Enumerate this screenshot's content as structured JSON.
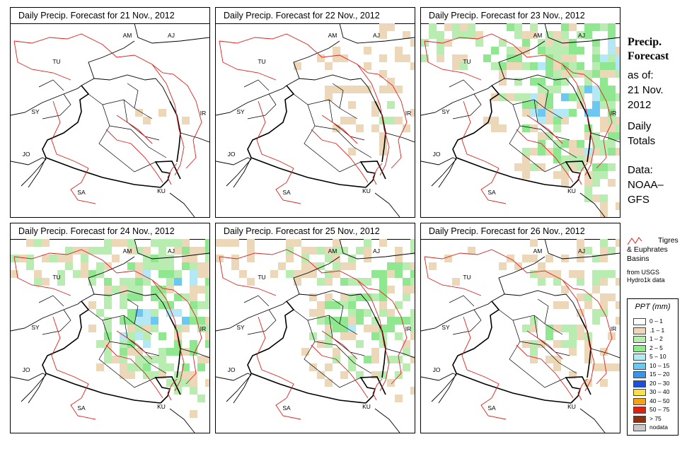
{
  "panels": [
    {
      "title": "Daily Precip. Forecast for  21 Nov., 2012",
      "intensity": 0.25
    },
    {
      "title": "Daily Precip. Forecast for  22 Nov., 2012",
      "intensity": 0.35
    },
    {
      "title": "Daily Precip. Forecast for  23 Nov., 2012",
      "intensity": 0.8
    },
    {
      "title": "Daily Precip. Forecast for  24 Nov., 2012",
      "intensity": 0.75
    },
    {
      "title": "Daily Precip. Forecast for  25 Nov., 2012",
      "intensity": 0.6
    },
    {
      "title": "Daily Precip. Forecast for  26 Nov., 2012",
      "intensity": 0.45
    }
  ],
  "map_labels": [
    "AM",
    "AJ",
    "TU",
    "SY",
    "IR",
    "JO",
    "SA",
    "KU"
  ],
  "sidebar": {
    "title_line1": "Precip.",
    "title_line2": "Forecast",
    "asof_line1": "as of:",
    "asof_line2": "21 Nov.",
    "asof_line3": "2012",
    "daily_line1": "Daily",
    "daily_line2": "Totals",
    "data_line1": "Data:",
    "data_line2": "NOAA–",
    "data_line3": "GFS"
  },
  "basins_legend": {
    "line1": "Tigres",
    "line2": "& Euphrates",
    "line3": "Basins",
    "src1": "from USGS",
    "src2": "Hydro1k data",
    "color": "#e02020"
  },
  "legend": {
    "title": "PPT (mm)",
    "items": [
      {
        "label": "0 – 1",
        "color": "#ffffff"
      },
      {
        "label": ".1 – 1",
        "color": "#ecd8b8"
      },
      {
        "label": "1 – 2",
        "color": "#b8ecb0"
      },
      {
        "label": "2 – 5",
        "color": "#8fe890"
      },
      {
        "label": "5 – 10",
        "color": "#b4e8f4"
      },
      {
        "label": "10 – 15",
        "color": "#6cc8f0"
      },
      {
        "label": "15 – 20",
        "color": "#3c94e8"
      },
      {
        "label": "20 – 30",
        "color": "#1c50d8"
      },
      {
        "label": "30 – 40",
        "color": "#f8e048"
      },
      {
        "label": "40 – 50",
        "color": "#f8a018"
      },
      {
        "label": "50 – 75",
        "color": "#e02010"
      },
      {
        "label": "> 75",
        "color": "#903010"
      },
      {
        "label": "nodata",
        "color": "#c8c8c8"
      }
    ]
  }
}
